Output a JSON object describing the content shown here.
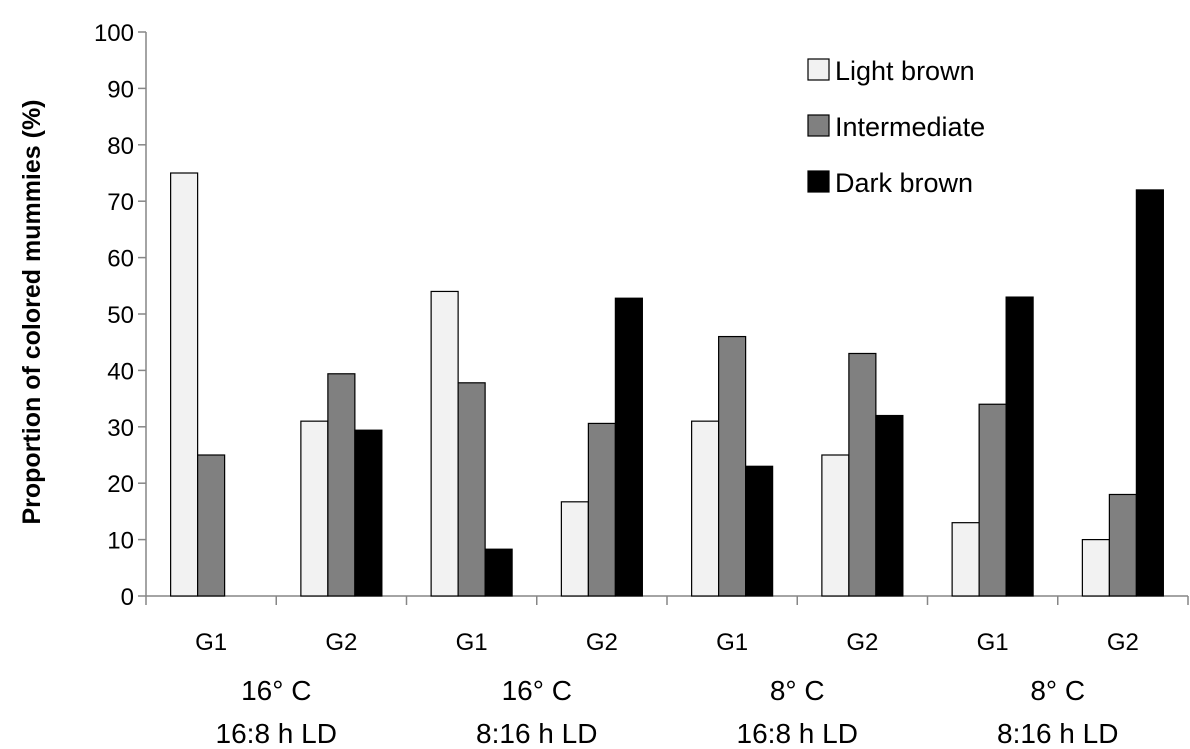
{
  "chart_data": {
    "type": "bar",
    "title": "",
    "ylabel": "Proportion of colored mummies (%)",
    "ylim": [
      0,
      100
    ],
    "yticks": [
      0,
      10,
      20,
      30,
      40,
      50,
      60,
      70,
      80,
      90,
      100
    ],
    "grid": false,
    "legend_position": "top-right",
    "categories": [
      "G1",
      "G2",
      "G1",
      "G2",
      "G1",
      "G2",
      "G1",
      "G2"
    ],
    "groups": [
      {
        "line1": "16° C",
        "line2": "16:8 h LD"
      },
      {
        "line1": "16° C",
        "line2": "8:16 h LD"
      },
      {
        "line1": "8° C",
        "line2": "16:8 h LD"
      },
      {
        "line1": "8° C",
        "line2": "8:16 h LD"
      }
    ],
    "series": [
      {
        "name": "Light brown",
        "color": "#f2f2f2",
        "values": [
          75,
          31,
          54,
          16.7,
          31,
          25,
          13,
          10
        ]
      },
      {
        "name": "Intermediate",
        "color": "#808080",
        "values": [
          25,
          39.4,
          37.8,
          30.6,
          46,
          43,
          34,
          18
        ]
      },
      {
        "name": "Dark brown",
        "color": "#000000",
        "values": [
          0,
          29.4,
          8.3,
          52.8,
          23,
          32,
          53,
          72
        ]
      }
    ]
  }
}
